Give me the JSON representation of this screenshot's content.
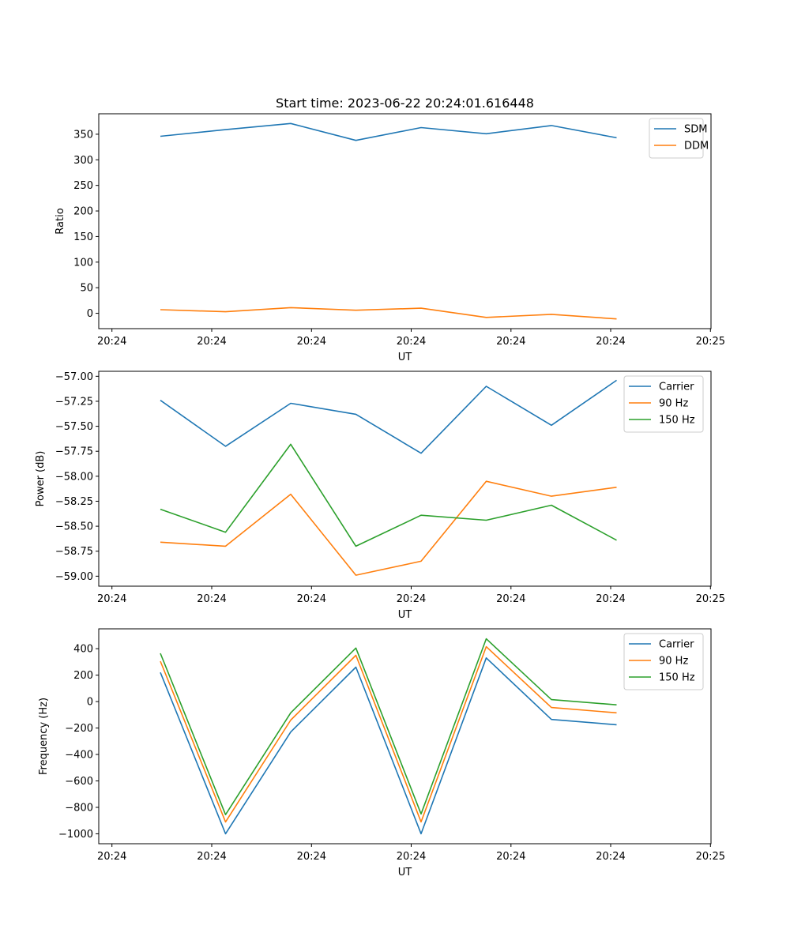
{
  "chart_data": [
    {
      "type": "line",
      "title": "Start time: 2023-06-22 20:24:01.616448",
      "xlabel": "UT",
      "ylabel": "Ratio",
      "x_tick_labels": [
        "20:24",
        "20:24",
        "20:24",
        "20:24",
        "20:24",
        "20:24",
        "20:24"
      ],
      "x_edge_tick_label": "20:25",
      "y_ticks": [
        "0",
        "50",
        "100",
        "150",
        "200",
        "250",
        "300",
        "350"
      ],
      "ylim": [
        -30,
        390
      ],
      "legend_position": "top-right",
      "grid": false,
      "series": [
        {
          "name": "SDM",
          "color": "#1f77b4",
          "values": [
            346,
            359,
            371,
            338,
            363,
            351,
            367,
            343
          ]
        },
        {
          "name": "DDM",
          "color": "#ff7f0e",
          "values": [
            7,
            3,
            11,
            6,
            10,
            -8,
            -2,
            -11
          ]
        }
      ]
    },
    {
      "type": "line",
      "title": "",
      "xlabel": "UT",
      "ylabel": "Power (dB)",
      "x_tick_labels": [
        "20:24",
        "20:24",
        "20:24",
        "20:24",
        "20:24",
        "20:24",
        "20:24"
      ],
      "x_edge_tick_label": "20:25",
      "y_ticks": [
        "−59.00",
        "−58.75",
        "−58.50",
        "−58.25",
        "−58.00",
        "−57.75",
        "−57.50",
        "−57.25",
        "−57.00"
      ],
      "ylim": [
        -59.1,
        -56.95
      ],
      "legend_position": "top-right",
      "grid": false,
      "series": [
        {
          "name": "Carrier",
          "color": "#1f77b4",
          "values": [
            -57.24,
            -57.7,
            -57.27,
            -57.38,
            -57.77,
            -57.1,
            -57.49,
            -57.04
          ]
        },
        {
          "name": "90 Hz",
          "color": "#ff7f0e",
          "values": [
            -58.66,
            -58.7,
            -58.18,
            -58.99,
            -58.85,
            -58.05,
            -58.2,
            -58.11
          ]
        },
        {
          "name": "150 Hz",
          "color": "#2ca02c",
          "values": [
            -58.33,
            -58.56,
            -57.68,
            -58.7,
            -58.39,
            -58.44,
            -58.29,
            -58.64
          ]
        }
      ]
    },
    {
      "type": "line",
      "title": "",
      "xlabel": "UT",
      "ylabel": "Frequency (Hz)",
      "x_tick_labels": [
        "20:24",
        "20:24",
        "20:24",
        "20:24",
        "20:24",
        "20:24",
        "20:24"
      ],
      "x_edge_tick_label": "20:25",
      "y_ticks": [
        "−1000",
        "−800",
        "−600",
        "−400",
        "−200",
        "0",
        "200",
        "400"
      ],
      "ylim": [
        -1075,
        550
      ],
      "legend_position": "top-right",
      "grid": false,
      "series": [
        {
          "name": "Carrier",
          "color": "#1f77b4",
          "values": [
            220,
            -1000,
            -230,
            260,
            -1000,
            330,
            -135,
            -175
          ]
        },
        {
          "name": "90 Hz",
          "color": "#ff7f0e",
          "values": [
            305,
            -910,
            -140,
            350,
            -910,
            415,
            -45,
            -85
          ]
        },
        {
          "name": "150 Hz",
          "color": "#2ca02c",
          "values": [
            365,
            -855,
            -85,
            405,
            -850,
            475,
            15,
            -25
          ]
        }
      ]
    }
  ]
}
